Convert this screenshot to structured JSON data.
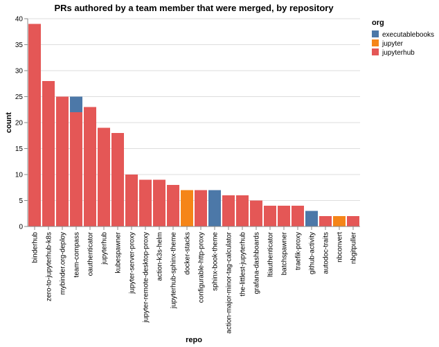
{
  "chart_data": {
    "type": "bar",
    "stacked": true,
    "title": "PRs authored by a team member that were merged, by repository",
    "xlabel": "repo",
    "ylabel": "count",
    "ylim": [
      0,
      40
    ],
    "yticks": [
      0,
      5,
      10,
      15,
      20,
      25,
      30,
      35,
      40
    ],
    "grid": true,
    "legend": {
      "title": "org",
      "placement": "top-right",
      "entries": [
        {
          "name": "executablebooks",
          "color": "#4c78a8"
        },
        {
          "name": "jupyter",
          "color": "#f58518"
        },
        {
          "name": "jupyterhub",
          "color": "#e45756"
        }
      ]
    },
    "categories": [
      "binderhub",
      "zero-to-jupyterhub-k8s",
      "mybinder.org-deploy",
      "team-compass",
      "oauthenticator",
      "jupyterhub",
      "kubespawner",
      "jupyter-server-proxy",
      "jupyter-remote-desktop-proxy",
      "action-k3s-helm",
      "jupyterhub-sphinx-theme",
      "docker-stacks",
      "configurable-http-proxy",
      "sphinx-book-theme",
      "action-major-minor-tag-calculator",
      "the-littlest-jupyterhub",
      "grafana-dashboards",
      "ltiauthenticator",
      "batchspawner",
      "traefik-proxy",
      "github-activity",
      "autodoc-traits",
      "nbconvert",
      "nbgitpuller"
    ],
    "series": [
      {
        "name": "jupyterhub",
        "values": [
          39,
          28,
          25,
          22,
          23,
          19,
          18,
          10,
          9,
          9,
          8,
          0,
          7,
          0,
          6,
          6,
          5,
          4,
          4,
          4,
          0,
          2,
          0,
          2
        ]
      },
      {
        "name": "executablebooks",
        "values": [
          0,
          0,
          0,
          3,
          0,
          0,
          0,
          0,
          0,
          0,
          0,
          0,
          0,
          7,
          0,
          0,
          0,
          0,
          0,
          0,
          3,
          0,
          0,
          0
        ]
      },
      {
        "name": "jupyter",
        "values": [
          0,
          0,
          0,
          0,
          0,
          0,
          0,
          0,
          0,
          0,
          0,
          7,
          0,
          0,
          0,
          0,
          0,
          0,
          0,
          0,
          0,
          0,
          2,
          0
        ]
      }
    ]
  }
}
